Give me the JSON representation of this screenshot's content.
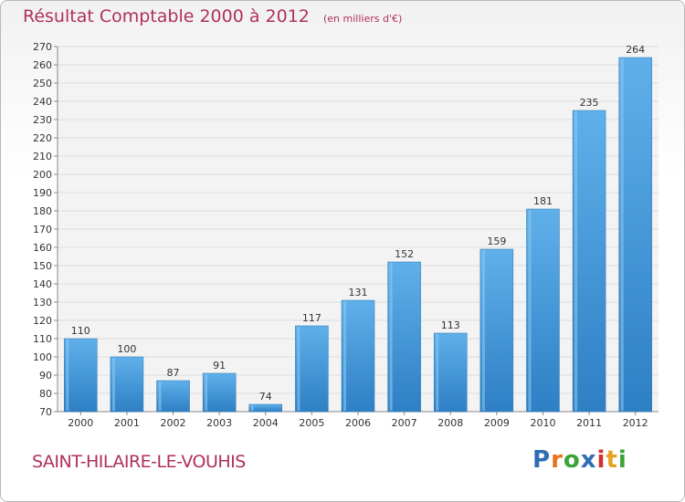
{
  "header": {
    "title": "Résultat Comptable 2000 à 2012",
    "unit_note": "(en milliers d'€)"
  },
  "footer": {
    "commune": "SAINT-HILAIRE-LE-VOUHIS",
    "logo_text": "Proxiti",
    "logo_letter_colors": [
      "#2f6db5",
      "#e8731f",
      "#3aa33a",
      "#2f6db5",
      "#d0312d",
      "#e8a21f",
      "#3aa33a"
    ]
  },
  "colors": {
    "bar": "#3a93d6",
    "bar_light": "#5fb0ea",
    "title": "#b0305e",
    "axis_text": "#333333"
  },
  "chart_data": {
    "type": "bar",
    "title": "Résultat Comptable 2000 à 2012",
    "categories": [
      "2000",
      "2001",
      "2002",
      "2003",
      "2004",
      "2005",
      "2006",
      "2007",
      "2008",
      "2009",
      "2010",
      "2011",
      "2012"
    ],
    "values": [
      110,
      100,
      87,
      91,
      74,
      117,
      131,
      152,
      113,
      159,
      181,
      235,
      264
    ],
    "ylim": [
      70,
      270
    ],
    "ytick_step": 10,
    "grid": true
  }
}
